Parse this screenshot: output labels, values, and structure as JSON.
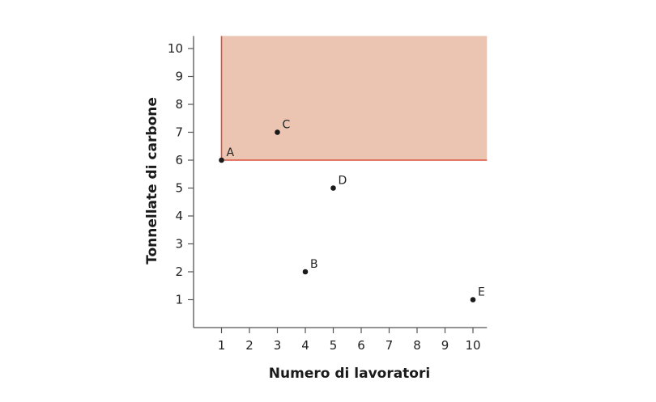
{
  "chart_data": {
    "type": "scatter",
    "title": "",
    "xlabel": "Numero di lavoratori",
    "ylabel": "Tonnellate di carbone",
    "xlim": [
      0,
      10.5
    ],
    "ylim": [
      0,
      10.45
    ],
    "xticks": [
      1,
      2,
      3,
      4,
      5,
      6,
      7,
      8,
      9,
      10
    ],
    "yticks": [
      1,
      2,
      3,
      4,
      5,
      6,
      7,
      8,
      9,
      10
    ],
    "grid": false,
    "points": [
      {
        "label": "A",
        "x": 1,
        "y": 6
      },
      {
        "label": "B",
        "x": 4,
        "y": 2
      },
      {
        "label": "C",
        "x": 3,
        "y": 7
      },
      {
        "label": "D",
        "x": 5,
        "y": 5
      },
      {
        "label": "E",
        "x": 10,
        "y": 1
      }
    ],
    "shaded_region": {
      "x_from": 1,
      "y_from": 6,
      "x_to": 10.5,
      "y_to": 10.45
    },
    "colors": {
      "region_fill": "#ecc5b2",
      "region_border": "#d9503c",
      "point": "#1a1a1a",
      "axis": "#555555"
    }
  }
}
